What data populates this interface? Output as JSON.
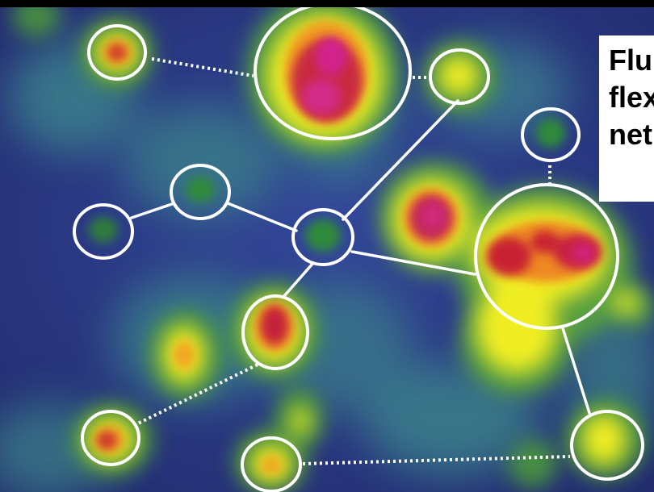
{
  "figure": {
    "caption_lines": [
      "Flu",
      "flex",
      "net"
    ],
    "palette": {
      "background": "#2b3a86",
      "glow": "#f2f020",
      "core": "#cc1e3a",
      "hot": "#d0247e",
      "nodes_dim": "#2f7d3a",
      "outline": "#ffffff"
    }
  }
}
